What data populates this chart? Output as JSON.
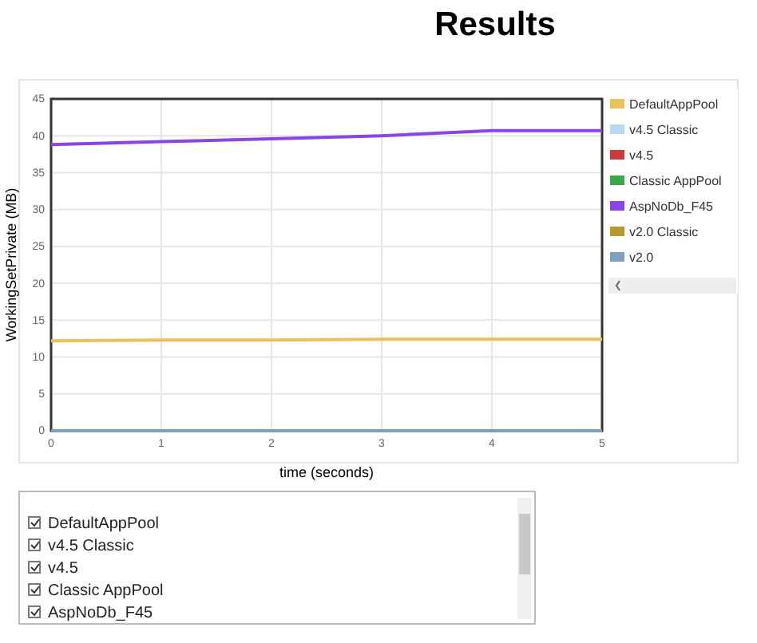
{
  "chart_data": {
    "type": "line",
    "title": "Results",
    "xlabel": "time (seconds)",
    "ylabel": "WorkingSetPrivate (MB)",
    "x": [
      0,
      1,
      2,
      3,
      4,
      5
    ],
    "series": [
      {
        "name": "DefaultAppPool",
        "color": "#e8c35c",
        "values": [
          12.2,
          12.3,
          12.3,
          12.4,
          12.4,
          12.4
        ]
      },
      {
        "name": "v4.5 Classic",
        "color": "#b9d9f2",
        "values": [
          null,
          null,
          null,
          null,
          null,
          null
        ]
      },
      {
        "name": "v4.5",
        "color": "#cc3b3b",
        "values": [
          null,
          null,
          null,
          null,
          null,
          null
        ]
      },
      {
        "name": "Classic AppPool",
        "color": "#3aa84a",
        "values": [
          null,
          null,
          null,
          null,
          null,
          null
        ]
      },
      {
        "name": "AspNoDb_F45",
        "color": "#8a44e8",
        "values": [
          38.8,
          39.2,
          39.6,
          40,
          40.7,
          40.7
        ]
      },
      {
        "name": "v2.0 Classic",
        "color": "#b8972c",
        "values": [
          null,
          null,
          null,
          null,
          null,
          null
        ]
      },
      {
        "name": "v2.0",
        "color": "#7f9fbf",
        "values": [
          0,
          0,
          0,
          0,
          0,
          0
        ]
      }
    ],
    "xlim": [
      0,
      5
    ],
    "xticks": [
      0,
      1,
      2,
      3,
      4,
      5
    ],
    "ylim": [
      0,
      45
    ],
    "yticks": [
      0,
      5,
      10,
      15,
      20,
      25,
      30,
      35,
      40,
      45
    ],
    "grid": true,
    "legend": "right",
    "marker": "none",
    "line_style": "solid"
  }
}
